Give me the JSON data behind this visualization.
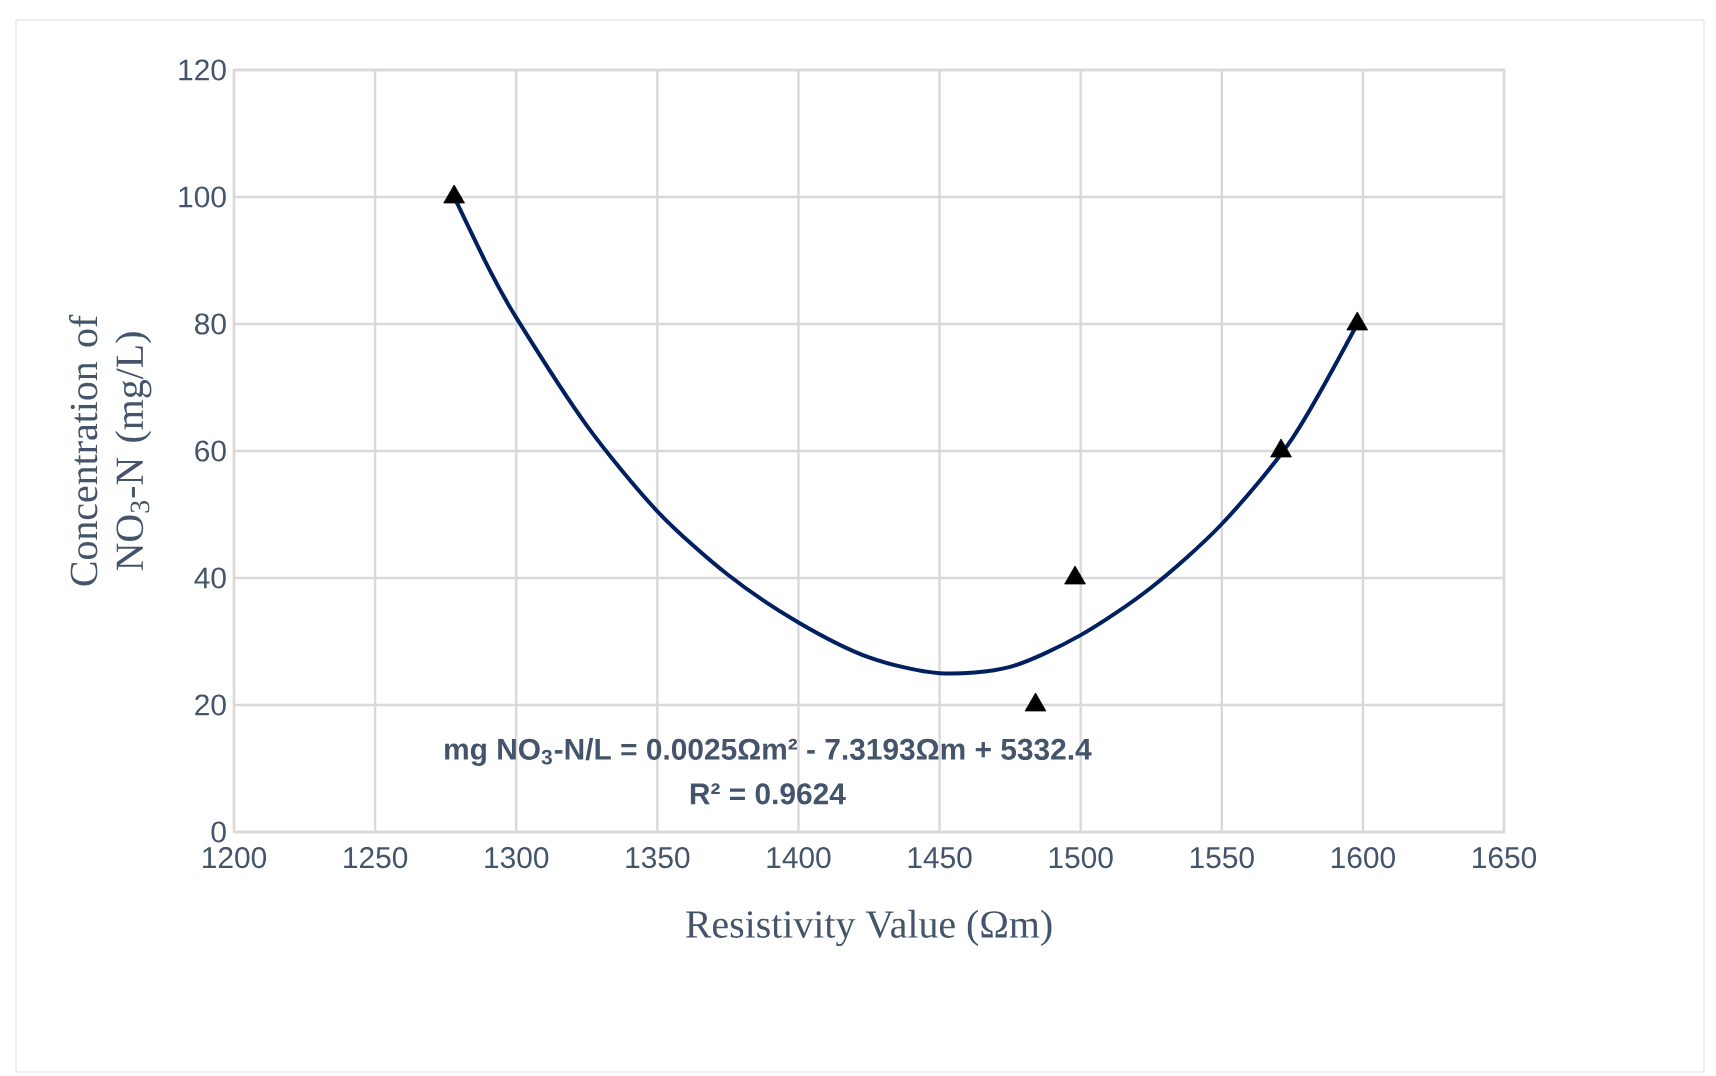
{
  "chart_data": {
    "type": "scatter",
    "xlabel": "Resistivity Value (Ωm)",
    "ylabel": "Concentration of NO$_{3}$-N (mg/L)",
    "xlim": [
      1200,
      1650
    ],
    "xticks": [
      1200,
      1250,
      1300,
      1350,
      1400,
      1450,
      1500,
      1550,
      1600,
      1650
    ],
    "ylim": [
      0,
      120
    ],
    "yticks": [
      0,
      20,
      40,
      60,
      80,
      100,
      120
    ],
    "grid": true,
    "marker": "triangle",
    "series": [
      {
        "color": "#000000",
        "x": [
          1278,
          1484,
          1498,
          1571,
          1598
        ],
        "values": [
          100,
          20,
          40,
          60,
          80
        ]
      },
      {
        "type": "line",
        "color": "#002060",
        "marker": "none",
        "line_style": "solid",
        "x": [
          1278,
          1290,
          1300,
          1325,
          1350,
          1375,
          1400,
          1425,
          1450,
          1475,
          1500,
          1525,
          1550,
          1575,
          1598
        ],
        "values": [
          100,
          89,
          81,
          64,
          50.5,
          40.5,
          33,
          27.5,
          25,
          26,
          31,
          38.5,
          48.5,
          62,
          80
        ]
      }
    ],
    "annotations": [
      "mg NO$_{3}$-N/L  = 0.0025Ωm² - 7.3193Ωm + 5332.4",
      "R² = 0.9624"
    ]
  }
}
